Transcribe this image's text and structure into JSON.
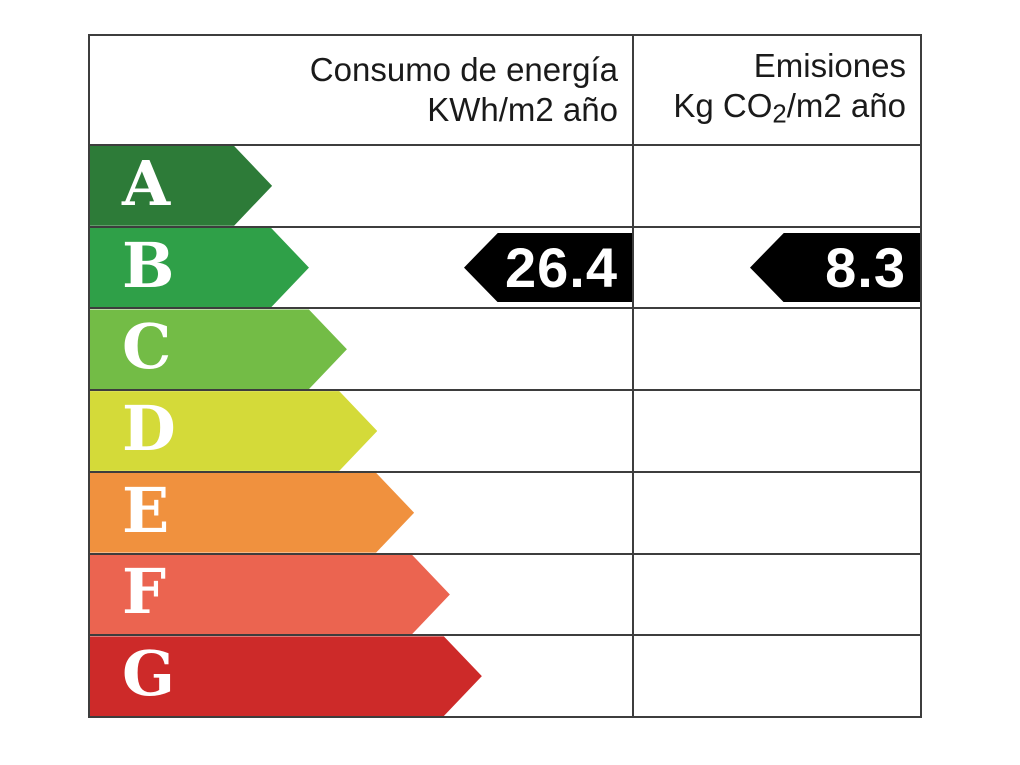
{
  "header": {
    "consumption": {
      "title": "Consumo de energía",
      "unit_prefix": "KWh/m",
      "unit_exponent": "2",
      "unit_suffix": " año"
    },
    "emissions": {
      "title": "Emisiones",
      "unit_prefix": "Kg CO",
      "unit_subscript": "2",
      "unit_mid": "/m",
      "unit_exponent": "2",
      "unit_suffix": " año"
    }
  },
  "ratings": [
    {
      "letter": "A",
      "color": "#2d7b38",
      "width_pct": 33.6
    },
    {
      "letter": "B",
      "color": "#2fa048",
      "width_pct": 40.4
    },
    {
      "letter": "C",
      "color": "#73bc46",
      "width_pct": 47.4
    },
    {
      "letter": "D",
      "color": "#d4da39",
      "width_pct": 53.0
    },
    {
      "letter": "E",
      "color": "#f0913e",
      "width_pct": 59.8
    },
    {
      "letter": "F",
      "color": "#eb6450",
      "width_pct": 66.4
    },
    {
      "letter": "G",
      "color": "#cd2a29",
      "width_pct": 72.3
    }
  ],
  "current_rating": "B",
  "values": {
    "consumption": "26.4",
    "emissions": "8.3"
  },
  "colors": {
    "value_arrow": "#000000",
    "border": "#3d3d3d",
    "letter_text": "#ffffff",
    "value_text": "#ffffff",
    "background": "#ffffff"
  },
  "chart_data": {
    "type": "bar",
    "title": "Etiqueta de eficiencia energética",
    "columns": [
      "Consumo de energía KWh/m2 año",
      "Emisiones Kg CO2/m2 año"
    ],
    "categories": [
      "A",
      "B",
      "C",
      "D",
      "E",
      "F",
      "G"
    ],
    "scale_bar_relative_lengths_pct": [
      33.6,
      40.4,
      47.4,
      53.0,
      59.8,
      66.4,
      72.3
    ],
    "scale_colors": [
      "#2d7b38",
      "#2fa048",
      "#73bc46",
      "#d4da39",
      "#f0913e",
      "#eb6450",
      "#cd2a29"
    ],
    "rating": "B",
    "consumption_kwh_m2_year": 26.4,
    "emissions_kg_co2_m2_year": 8.3,
    "legend_position": "none",
    "grid": "table-borders"
  }
}
